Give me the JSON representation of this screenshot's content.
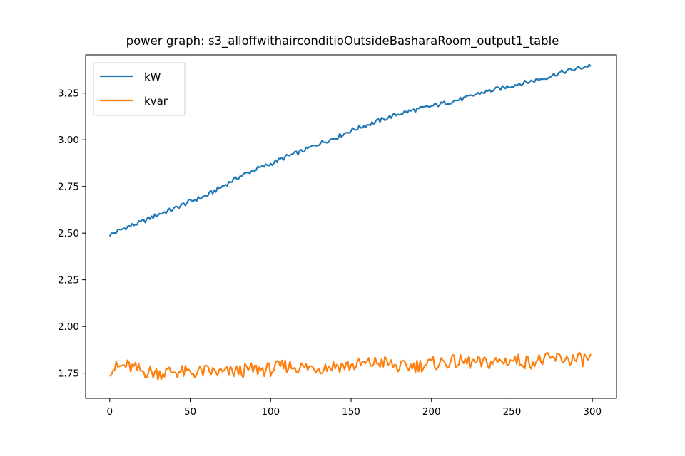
{
  "chart_data": {
    "type": "line",
    "title": "power graph: s3_alloffwithairconditioOutsideBasharaRoom_output1_table",
    "xlabel": "",
    "ylabel": "",
    "xlim": [
      -15,
      315
    ],
    "ylim": [
      1.615,
      3.455
    ],
    "xticks": [
      0,
      50,
      100,
      150,
      200,
      250,
      300
    ],
    "yticks": [
      1.75,
      2.0,
      2.25,
      2.5,
      2.75,
      3.0,
      3.25
    ],
    "ytick_labels": [
      "1.75",
      "2.00",
      "2.25",
      "2.50",
      "2.75",
      "3.00",
      "3.25"
    ],
    "grid": false,
    "legend_position": "upper-left",
    "series": [
      {
        "name": "kW",
        "color": "#1f77b4",
        "points": [
          [
            0,
            2.49
          ],
          [
            10,
            2.53
          ],
          [
            20,
            2.56
          ],
          [
            30,
            2.6
          ],
          [
            40,
            2.63
          ],
          [
            50,
            2.67
          ],
          [
            60,
            2.7
          ],
          [
            70,
            2.75
          ],
          [
            80,
            2.8
          ],
          [
            90,
            2.84
          ],
          [
            100,
            2.87
          ],
          [
            110,
            2.91
          ],
          [
            120,
            2.94
          ],
          [
            130,
            2.98
          ],
          [
            140,
            3.01
          ],
          [
            150,
            3.05
          ],
          [
            160,
            3.08
          ],
          [
            170,
            3.11
          ],
          [
            180,
            3.14
          ],
          [
            190,
            3.16
          ],
          [
            200,
            3.18
          ],
          [
            210,
            3.2
          ],
          [
            220,
            3.22
          ],
          [
            230,
            3.25
          ],
          [
            240,
            3.27
          ],
          [
            250,
            3.29
          ],
          [
            260,
            3.31
          ],
          [
            270,
            3.33
          ],
          [
            280,
            3.36
          ],
          [
            290,
            3.38
          ],
          [
            299,
            3.4
          ]
        ]
      },
      {
        "name": "kvar",
        "color": "#ff7f0e",
        "points": [
          [
            0,
            1.77
          ],
          [
            10,
            1.79
          ],
          [
            20,
            1.76
          ],
          [
            30,
            1.75
          ],
          [
            40,
            1.76
          ],
          [
            50,
            1.75
          ],
          [
            60,
            1.76
          ],
          [
            70,
            1.75
          ],
          [
            80,
            1.76
          ],
          [
            90,
            1.77
          ],
          [
            100,
            1.77
          ],
          [
            110,
            1.79
          ],
          [
            120,
            1.78
          ],
          [
            130,
            1.78
          ],
          [
            140,
            1.79
          ],
          [
            150,
            1.79
          ],
          [
            160,
            1.8
          ],
          [
            170,
            1.81
          ],
          [
            180,
            1.78
          ],
          [
            190,
            1.79
          ],
          [
            200,
            1.8
          ],
          [
            210,
            1.81
          ],
          [
            220,
            1.81
          ],
          [
            230,
            1.8
          ],
          [
            240,
            1.81
          ],
          [
            250,
            1.82
          ],
          [
            260,
            1.81
          ],
          [
            270,
            1.82
          ],
          [
            280,
            1.83
          ],
          [
            290,
            1.82
          ],
          [
            299,
            1.83
          ]
        ]
      }
    ]
  }
}
